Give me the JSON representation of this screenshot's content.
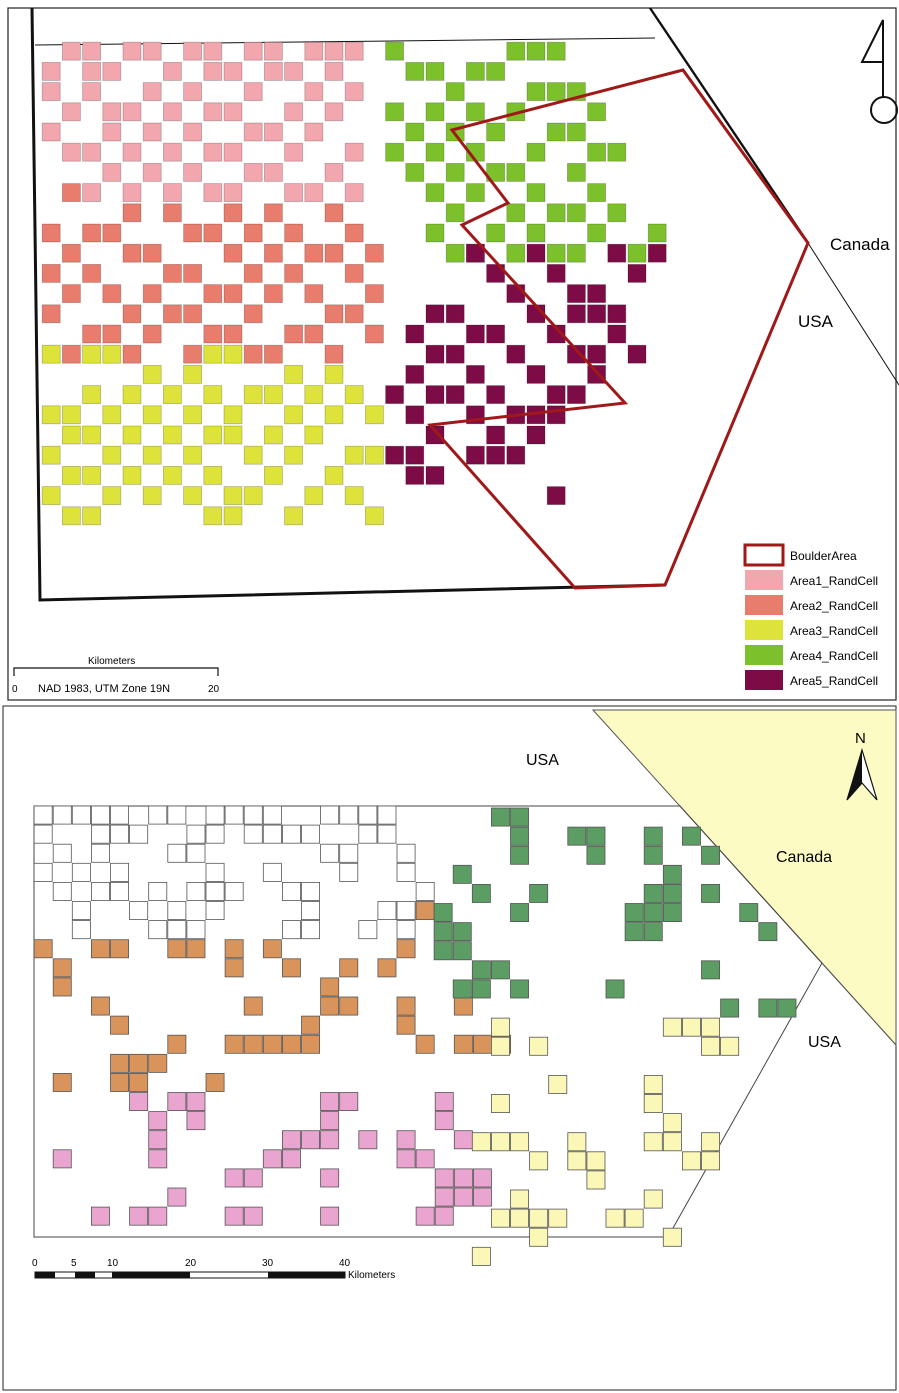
{
  "top_map": {
    "labels": {
      "canada": "Canada",
      "usa": "USA"
    },
    "legend": [
      {
        "key": "boulder",
        "label": "BoulderArea",
        "color": "#ffffff",
        "stroke": "#a01818"
      },
      {
        "key": "a1",
        "label": "Area1_RandCell",
        "color": "#f2a7ae"
      },
      {
        "key": "a2",
        "label": "Area2_RandCell",
        "color": "#e87d6e"
      },
      {
        "key": "a3",
        "label": "Area3_RandCell",
        "color": "#dde33a"
      },
      {
        "key": "a4",
        "label": "Area4_RandCell",
        "color": "#7cc12b"
      },
      {
        "key": "a5",
        "label": "Area5_RandCell",
        "color": "#7d0b45"
      }
    ],
    "scale": {
      "title": "Kilometers",
      "left": "0",
      "right": "20",
      "projection": "NAD 1983, UTM Zone 19N"
    }
  },
  "bottom_map": {
    "labels": {
      "usa_top": "USA",
      "canada": "Canada",
      "usa_right": "USA"
    },
    "north": "N",
    "colors": {
      "white": "#ffffff",
      "orange": "#d9945b",
      "pink": "#e9a4cf",
      "green": "#5b9d63",
      "yellow": "#fbf7b6",
      "canada": "#fdfbc4"
    },
    "scale": {
      "ticks": [
        "0",
        "5",
        "10",
        "20",
        "30",
        "40"
      ],
      "unit": "Kilometers"
    }
  }
}
